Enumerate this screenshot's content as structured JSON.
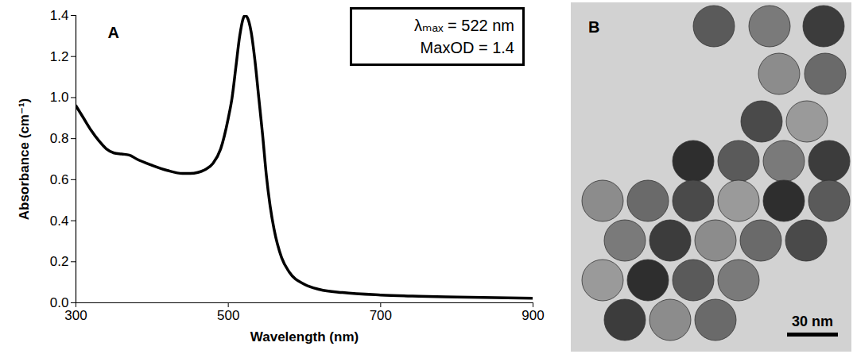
{
  "chart_data": {
    "type": "line",
    "panel": "A",
    "x_label": "Wavelength (nm)",
    "y_label": "Absorbance (cm⁻¹)",
    "annotations": [
      "λₘₐₓ = 522 nm",
      "MaxOD = 1.4"
    ],
    "x": [
      300,
      310,
      320,
      330,
      340,
      350,
      360,
      370,
      380,
      400,
      420,
      440,
      450,
      460,
      470,
      480,
      490,
      500,
      505,
      510,
      515,
      520,
      522,
      525,
      530,
      535,
      540,
      545,
      550,
      555,
      560,
      570,
      580,
      600,
      620,
      650,
      700,
      750,
      800,
      850,
      900
    ],
    "values": [
      0.96,
      0.9,
      0.84,
      0.79,
      0.75,
      0.73,
      0.725,
      0.72,
      0.7,
      0.67,
      0.645,
      0.63,
      0.63,
      0.635,
      0.65,
      0.68,
      0.75,
      0.9,
      1.0,
      1.15,
      1.3,
      1.39,
      1.4,
      1.39,
      1.32,
      1.18,
      1.0,
      0.82,
      0.62,
      0.47,
      0.36,
      0.22,
      0.15,
      0.09,
      0.065,
      0.05,
      0.038,
      0.032,
      0.028,
      0.025,
      0.022
    ],
    "color": "#000000",
    "xlim": [
      300,
      900
    ],
    "xticks": [
      300,
      500,
      700,
      900
    ],
    "ylim": [
      0,
      1.4
    ],
    "yticks": [
      {
        "value": 0,
        "label": "0.0"
      },
      0.2,
      0.4,
      0.6,
      0.8,
      {
        "value": 1,
        "label": "1.0"
      },
      1.2,
      1.4
    ],
    "grid": false
  },
  "image": {
    "panel": "B",
    "scale_bar": "30 nm"
  }
}
